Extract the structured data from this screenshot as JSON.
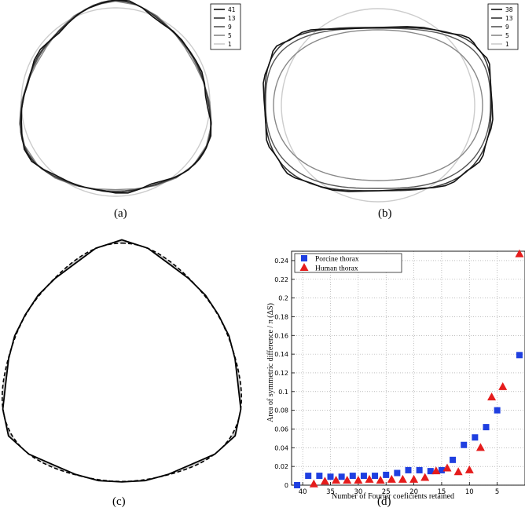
{
  "captions": {
    "a": "(a)",
    "b": "(b)",
    "c": "(c)",
    "d": "(d)"
  },
  "panel_a": {
    "legend": [
      "41",
      "13",
      "9",
      "5",
      "1"
    ],
    "line_colors": [
      "#111111",
      "#333333",
      "#555555",
      "#888888",
      "#cccccc"
    ]
  },
  "panel_b": {
    "legend": [
      "38",
      "13",
      "9",
      "5",
      "1"
    ],
    "line_colors": [
      "#111111",
      "#333333",
      "#555555",
      "#888888",
      "#cccccc"
    ]
  },
  "panel_c": {
    "fill_color": "#cccccc"
  },
  "chart_data": {
    "type": "scatter",
    "xlabel": "Number of Fourier coeficients retained",
    "ylabel": "Area of symmetric difference / π (ΔS)",
    "xlim": [
      42,
      0
    ],
    "ylim": [
      0,
      0.25
    ],
    "x_ticks": [
      40,
      35,
      30,
      25,
      20,
      15,
      10,
      5
    ],
    "y_ticks": [
      0,
      0.02,
      0.04,
      0.06,
      0.08,
      0.1,
      0.12,
      0.14,
      0.16,
      0.18,
      0.2,
      0.22,
      0.24
    ],
    "grid": true,
    "legend_position": "top-left",
    "series": [
      {
        "name": "Porcine thorax",
        "marker": "square",
        "color": "#1f3fe0",
        "x": [
          41,
          39,
          37,
          35,
          33,
          31,
          29,
          27,
          25,
          23,
          21,
          19,
          17,
          15,
          13,
          11,
          9,
          7,
          5,
          1
        ],
        "y": [
          0.0,
          0.01,
          0.01,
          0.009,
          0.009,
          0.01,
          0.01,
          0.01,
          0.011,
          0.013,
          0.016,
          0.016,
          0.015,
          0.016,
          0.027,
          0.043,
          0.051,
          0.062,
          0.08,
          0.139
        ]
      },
      {
        "name": "Human thorax",
        "marker": "triangle",
        "color": "#e51c1c",
        "x": [
          38,
          36,
          34,
          32,
          30,
          28,
          26,
          24,
          22,
          20,
          18,
          16,
          14,
          12,
          10,
          8,
          6,
          4,
          1
        ],
        "y": [
          0.001,
          0.004,
          0.005,
          0.005,
          0.005,
          0.006,
          0.005,
          0.006,
          0.006,
          0.006,
          0.008,
          0.015,
          0.018,
          0.014,
          0.016,
          0.04,
          0.094,
          0.105,
          0.247
        ]
      }
    ]
  }
}
